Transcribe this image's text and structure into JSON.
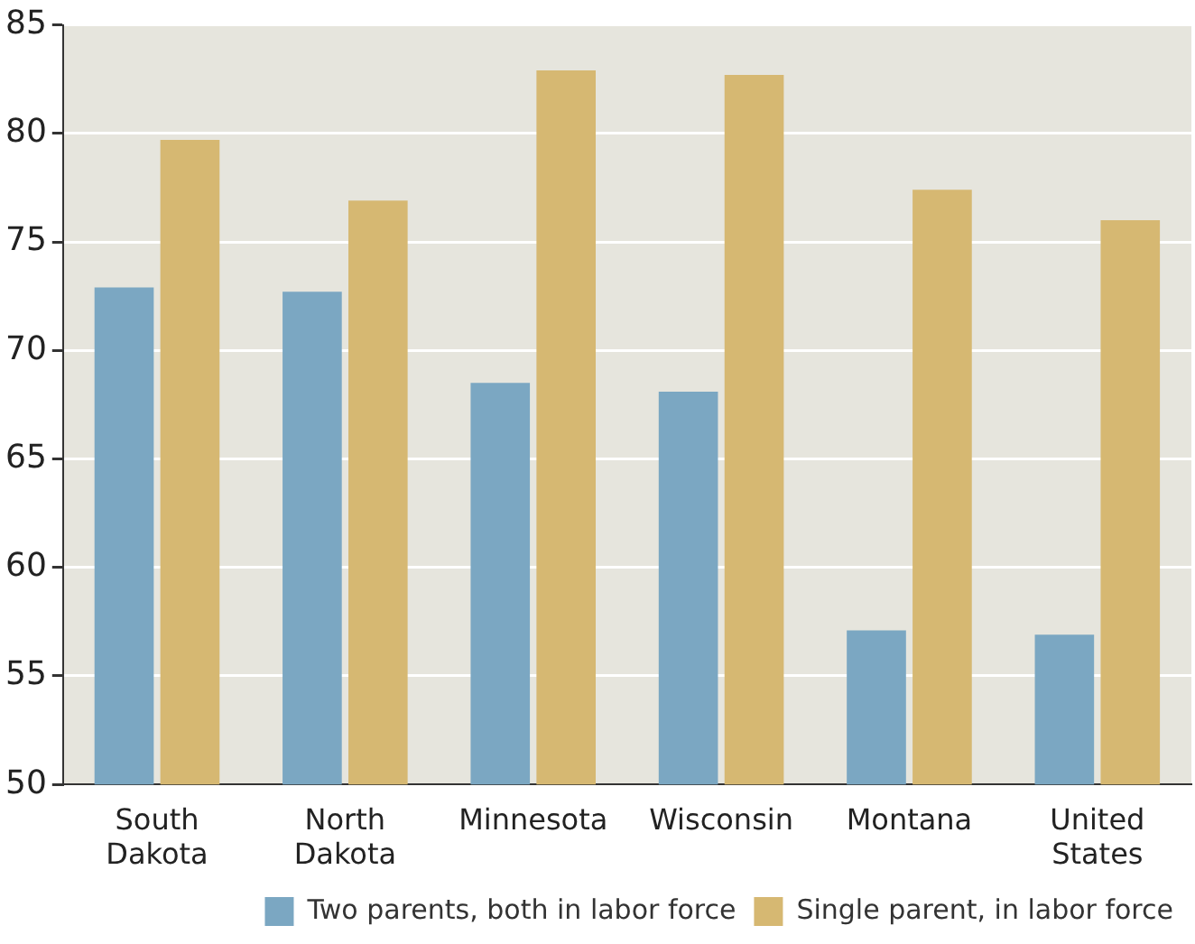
{
  "chart_data": {
    "type": "bar",
    "categories": [
      "South Dakota",
      "North Dakota",
      "Minnesota",
      "Wisconsin",
      "Montana",
      "United States"
    ],
    "series": [
      {
        "name": "Two parents, both in labor force",
        "color": "#7ba7c2",
        "values": [
          72.9,
          72.7,
          68.5,
          68.1,
          57.1,
          56.9
        ]
      },
      {
        "name": "Single parent, in labor force",
        "color": "#d6b872",
        "values": [
          79.7,
          76.9,
          82.9,
          82.7,
          77.4,
          76.0
        ]
      }
    ],
    "ylim": [
      50,
      85
    ],
    "yticks": [
      50,
      55,
      60,
      65,
      70,
      75,
      80,
      85
    ],
    "grid": "y",
    "legend": "bottom"
  }
}
